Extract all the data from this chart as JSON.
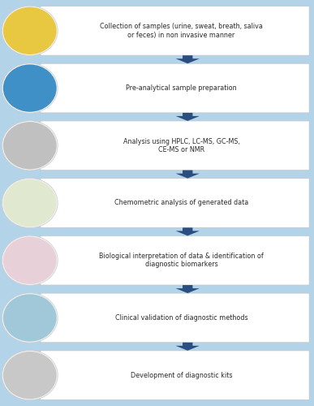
{
  "background_color": "#b3d4e8",
  "box_color": "#ffffff",
  "box_edge_color": "#c0c8d0",
  "arrow_color": "#2b4e80",
  "text_color": "#2a2a2a",
  "circle_bg_colors": [
    "#e8c840",
    "#4090c8",
    "#c0c0c0",
    "#e0e8d0",
    "#e8d0d8",
    "#a0c8d8",
    "#c8c8c8"
  ],
  "steps": [
    "Collection of samples (urine, sweat, breath, saliva\nor feces) in non invasive manner",
    "Pre-analytical sample preparation",
    "Analysis using HPLC, LC-MS, GC-MS,\nCE-MS or NMR",
    "Chemometric analysis of generated data",
    "Biological interpretation of data & identification of\ndiagnostic biomarkers",
    "Clinical validation of diagnostic methods",
    "Development of diagnostic kits"
  ],
  "n_steps": 7,
  "fig_width": 3.87,
  "fig_height": 5.0,
  "dpi": 100
}
